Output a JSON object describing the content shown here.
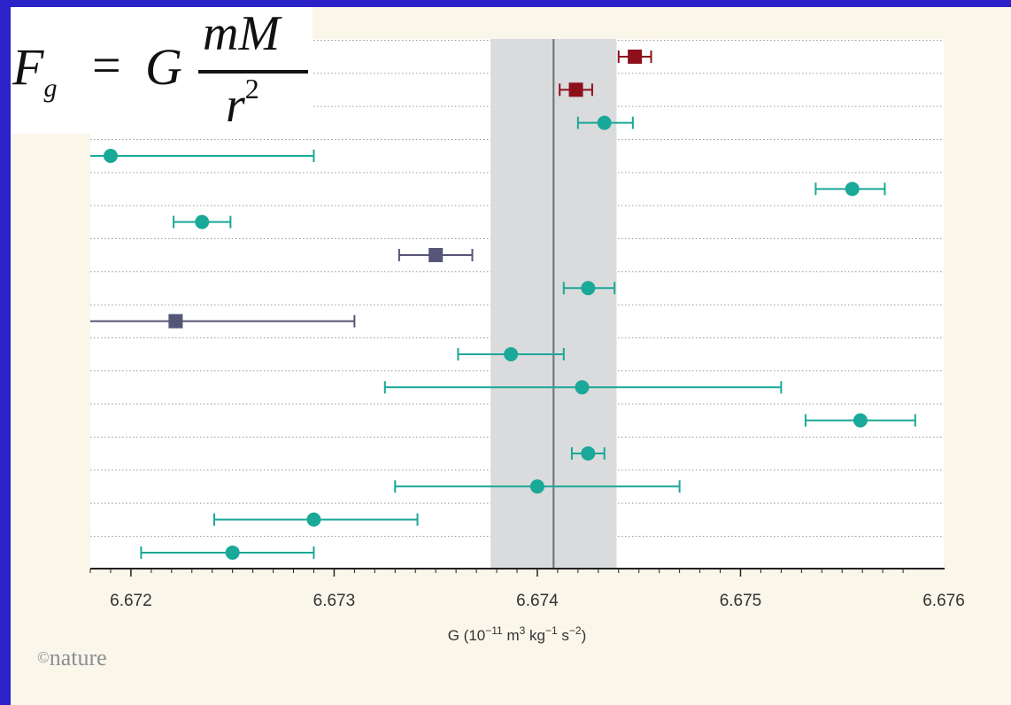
{
  "formula": {
    "F": "F",
    "sub": "g",
    "eq": "=",
    "G": "G",
    "numerator": "mM",
    "denominator": "r",
    "exponent": "2"
  },
  "credit": {
    "symbol": "©",
    "text": "nature"
  },
  "colors": {
    "teal": "#1aa898",
    "darkred": "#8e0f1c",
    "slate": "#555577",
    "band": "#d9dbdc",
    "refline": "#6b6f72",
    "grid": "#9a9a9a"
  },
  "chart_data": {
    "type": "scatter",
    "xlim": [
      6.6718,
      6.676
    ],
    "xticks": [
      "6.672",
      "6.673",
      "6.674",
      "6.675",
      "6.676"
    ],
    "xtick_values": [
      6.672,
      6.673,
      6.674,
      6.675,
      6.676
    ],
    "xlabel": {
      "pre": "G (10",
      "exp1": "−11",
      "m": " m",
      "exp2": "3",
      "kg": " kg",
      "exp3": "−1",
      "s": " s",
      "exp4": "−2",
      "post": ")"
    },
    "reference_value": 6.67408,
    "band": [
      6.67377,
      6.67439
    ],
    "grid": "horizontal dotted",
    "points": [
      {
        "value": 6.67448,
        "low": 6.6744,
        "high": 6.67456,
        "marker": "square",
        "color": "darkred"
      },
      {
        "value": 6.67419,
        "low": 6.67411,
        "high": 6.67427,
        "marker": "square",
        "color": "darkred"
      },
      {
        "value": 6.67433,
        "low": 6.6742,
        "high": 6.67447,
        "marker": "circle",
        "color": "teal"
      },
      {
        "value": 6.6719,
        "low": 6.6718,
        "high": 6.6729,
        "marker": "circle",
        "color": "teal"
      },
      {
        "value": 6.67555,
        "low": 6.67537,
        "high": 6.67571,
        "marker": "circle",
        "color": "teal"
      },
      {
        "value": 6.67235,
        "low": 6.67221,
        "high": 6.67249,
        "marker": "circle",
        "color": "teal"
      },
      {
        "value": 6.6735,
        "low": 6.67332,
        "high": 6.67368,
        "marker": "square",
        "color": "slate"
      },
      {
        "value": 6.67425,
        "low": 6.67413,
        "high": 6.67438,
        "marker": "circle",
        "color": "teal"
      },
      {
        "value": 6.67222,
        "low": 6.6718,
        "high": 6.6731,
        "marker": "square",
        "color": "slate"
      },
      {
        "value": 6.67387,
        "low": 6.67361,
        "high": 6.67413,
        "marker": "circle",
        "color": "teal"
      },
      {
        "value": 6.67422,
        "low": 6.67325,
        "high": 6.6752,
        "marker": "circle",
        "color": "teal"
      },
      {
        "value": 6.67559,
        "low": 6.67532,
        "high": 6.67586,
        "marker": "circle",
        "color": "teal"
      },
      {
        "value": 6.67425,
        "low": 6.67417,
        "high": 6.67433,
        "marker": "circle",
        "color": "teal"
      },
      {
        "value": 6.674,
        "low": 6.6733,
        "high": 6.6747,
        "marker": "circle",
        "color": "teal"
      },
      {
        "value": 6.6729,
        "low": 6.67241,
        "high": 6.67341,
        "marker": "circle",
        "color": "teal"
      },
      {
        "value": 6.6725,
        "low": 6.67205,
        "high": 6.6729,
        "marker": "circle",
        "color": "teal"
      }
    ]
  }
}
